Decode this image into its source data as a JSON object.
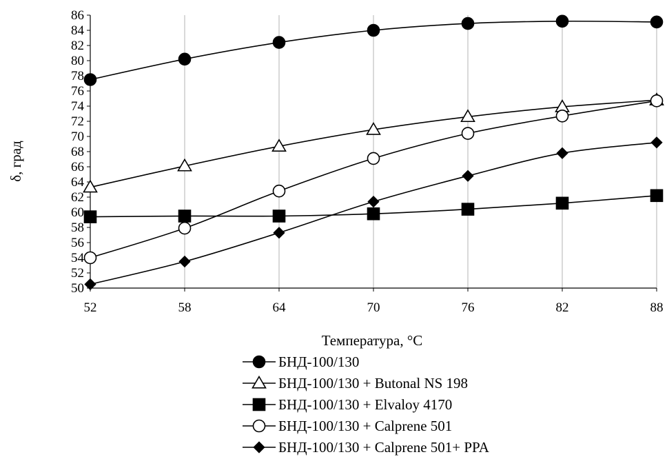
{
  "chart_data": {
    "type": "line",
    "xlabel": "Температура, °C",
    "ylabel": "δ, град",
    "x": [
      52,
      58,
      64,
      70,
      76,
      82,
      88
    ],
    "xlim": [
      52,
      88
    ],
    "ylim": [
      50,
      86
    ],
    "xticks": [
      52,
      58,
      64,
      70,
      76,
      82,
      88
    ],
    "yticks": [
      50,
      52,
      54,
      56,
      58,
      60,
      62,
      64,
      66,
      68,
      70,
      72,
      74,
      76,
      78,
      80,
      82,
      84,
      86
    ],
    "grid": "vertical",
    "legend_position": "bottom",
    "series": [
      {
        "name": "БНД-100/130",
        "marker": "circle-filled",
        "values": [
          77.5,
          80.2,
          82.4,
          84.0,
          84.9,
          85.2,
          85.1
        ]
      },
      {
        "name": "БНД-100/130 + Butonal NS 198",
        "marker": "triangle-open",
        "values": [
          63.3,
          66.1,
          68.7,
          70.9,
          72.6,
          73.9,
          74.8
        ]
      },
      {
        "name": "БНД-100/130 + Elvaloy 4170",
        "marker": "square-filled",
        "values": [
          59.4,
          59.5,
          59.5,
          59.8,
          60.4,
          61.2,
          62.2
        ]
      },
      {
        "name": "БНД-100/130 + Calprene 501",
        "marker": "circle-open",
        "values": [
          54.0,
          57.9,
          62.8,
          67.1,
          70.4,
          72.7,
          74.7
        ]
      },
      {
        "name": "БНД-100/130 + Calprene 501+ PPA",
        "marker": "diamond-filled",
        "values": [
          50.5,
          53.5,
          57.3,
          61.4,
          64.8,
          67.8,
          69.2
        ]
      }
    ],
    "colors": {
      "line": "#000000",
      "grid": "#b3b3b3",
      "background": "#ffffff"
    }
  }
}
